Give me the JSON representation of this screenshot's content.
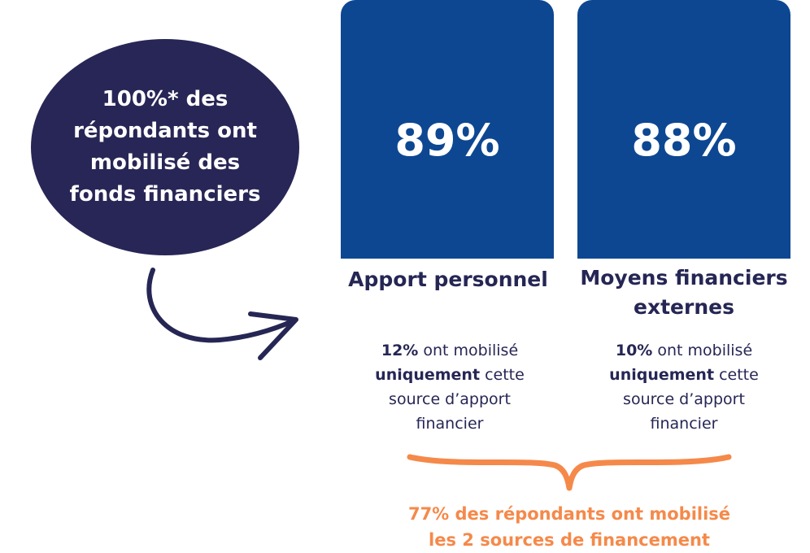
{
  "summary": {
    "lines": [
      "100%* des",
      "répondants ont",
      "mobilisé des",
      "fonds financiers"
    ]
  },
  "sources": [
    {
      "percent": "89%",
      "title": "Apport personnel",
      "detail": {
        "pct": "12%",
        "text1": " ont mobilisé",
        "strong": "uniquement",
        "text2": " cette",
        "line3": "source d’apport",
        "line4": "financier"
      }
    },
    {
      "percent": "88%",
      "title": "Moyens financiers externes",
      "detail": {
        "pct": "10%",
        "text1": " ont mobilisé",
        "strong": "uniquement",
        "text2": " cette",
        "line3": "source d’apport",
        "line4": "financier"
      }
    }
  ],
  "conclusion": {
    "line1": "77% des répondants ont mobilisé",
    "line2": "les 2 sources de financement"
  },
  "colors": {
    "oval": "#282656",
    "card": "#0d4792",
    "text": "#262655",
    "accent": "#f5894a"
  }
}
